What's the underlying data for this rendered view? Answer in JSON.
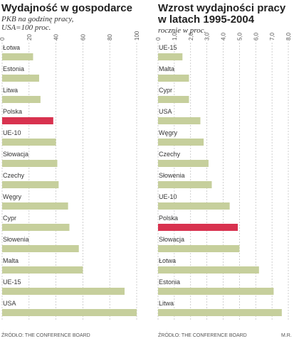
{
  "chart_data": [
    {
      "type": "bar",
      "orientation": "horizontal",
      "title": "Wydajność w gospodarce",
      "subtitle": [
        "PKB na godzinę pracy,",
        "USA=100 proc."
      ],
      "categories": [
        "Łotwa",
        "Estonia",
        "Litwa",
        "Polska",
        "UE-10",
        "Słowacja",
        "Czechy",
        "Węgry",
        "Cypr",
        "Słowenia",
        "Malta",
        "UE-15",
        "USA"
      ],
      "values": [
        23,
        27.5,
        28.5,
        38,
        40,
        41,
        42,
        49,
        50,
        57,
        60,
        91,
        100
      ],
      "colors": [
        "#c6cf9c",
        "#c6cf9c",
        "#c6cf9c",
        "#d8324f",
        "#c6cf9c",
        "#c6cf9c",
        "#c6cf9c",
        "#c6cf9c",
        "#c6cf9c",
        "#c6cf9c",
        "#c6cf9c",
        "#c6cf9c",
        "#c6cf9c"
      ],
      "xlim": [
        0,
        100
      ],
      "xticks": [
        0,
        20,
        40,
        60,
        80,
        100
      ],
      "grid": true,
      "source": "ŹRÓDŁO: THE CONFERENCE BOARD"
    },
    {
      "type": "bar",
      "orientation": "horizontal",
      "title": "Wzrost wydajności pracy\nw latach 1995-2004",
      "subtitle": [
        "rocznie w proc."
      ],
      "categories": [
        "UE-15",
        "Malta",
        "Cypr",
        "USA",
        "Węgry",
        "Czechy",
        "Słowenia",
        "UE-10",
        "Polska",
        "Słowacja",
        "Łotwa",
        "Estonia",
        "Litwa"
      ],
      "values": [
        1.5,
        1.9,
        1.9,
        2.6,
        2.8,
        3.1,
        3.3,
        4.4,
        4.9,
        5.0,
        6.2,
        7.1,
        7.6
      ],
      "colors": [
        "#c6cf9c",
        "#c6cf9c",
        "#c6cf9c",
        "#c6cf9c",
        "#c6cf9c",
        "#c6cf9c",
        "#c6cf9c",
        "#c6cf9c",
        "#d8324f",
        "#c6cf9c",
        "#c6cf9c",
        "#c6cf9c",
        "#c6cf9c"
      ],
      "xlim": [
        0,
        8
      ],
      "xticks": [
        0,
        {
          "value": 1,
          "label": "1,0"
        },
        {
          "value": 2,
          "label": "2,0"
        },
        {
          "value": 3,
          "label": "3,0"
        },
        {
          "value": 4,
          "label": "4,0"
        },
        {
          "value": 5,
          "label": "5,0"
        },
        {
          "value": 6,
          "label": "6,0"
        },
        {
          "value": 7,
          "label": "7,0"
        },
        {
          "value": 8,
          "label": "8,0"
        }
      ],
      "grid": true,
      "source": "ŹRÓDŁO: THE CONFERENCE BOARD"
    }
  ],
  "credit": "M.R."
}
